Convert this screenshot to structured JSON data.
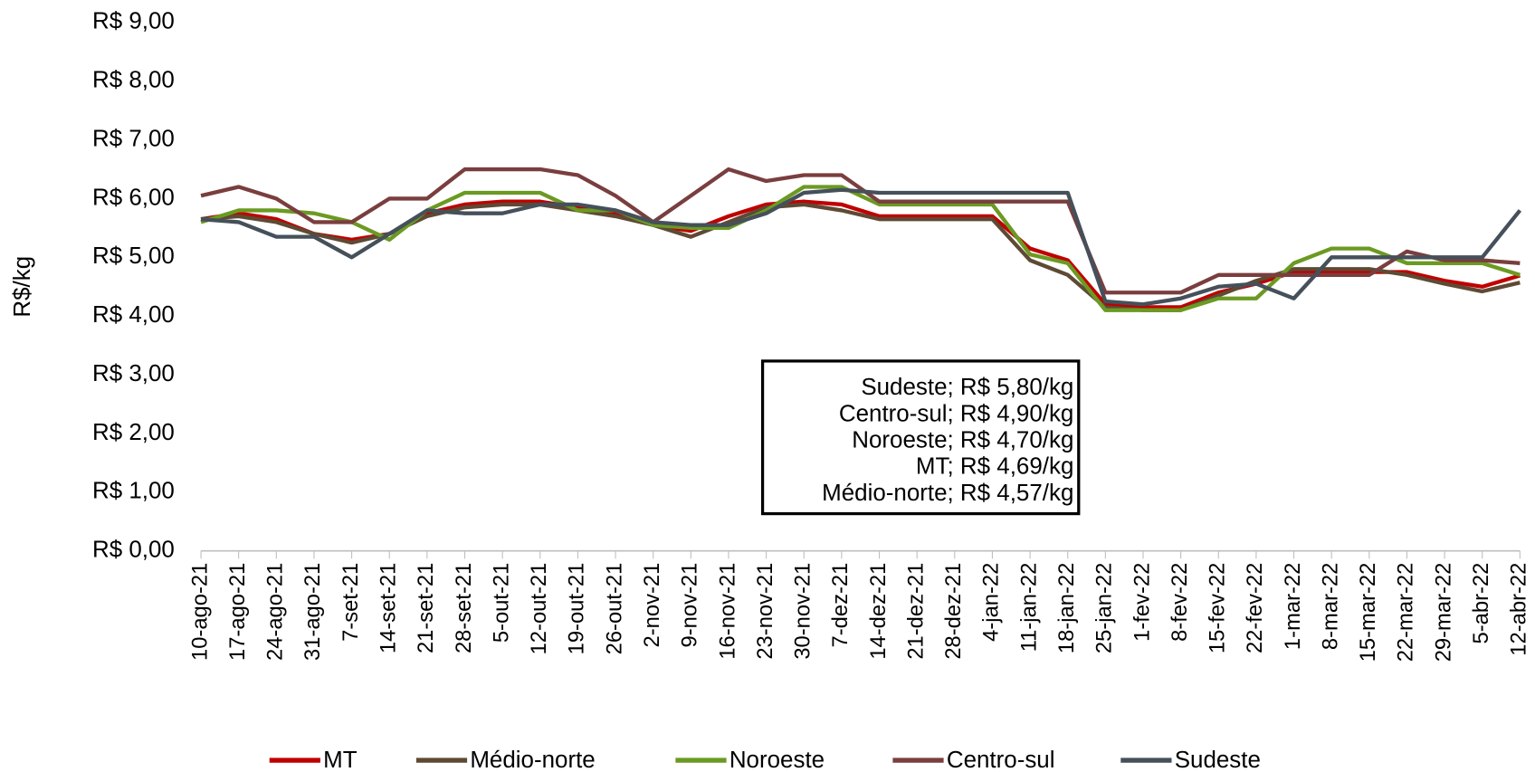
{
  "chart_data": {
    "type": "line",
    "y_label": "R$/kg",
    "categories": [
      "10-ago-21",
      "17-ago-21",
      "24-ago-21",
      "31-ago-21",
      "7-set-21",
      "14-set-21",
      "21-set-21",
      "28-set-21",
      "5-out-21",
      "12-out-21",
      "19-out-21",
      "26-out-21",
      "2-nov-21",
      "9-nov-21",
      "16-nov-21",
      "23-nov-21",
      "30-nov-21",
      "7-dez-21",
      "14-dez-21",
      "21-dez-21",
      "28-dez-21",
      "4-jan-22",
      "11-jan-22",
      "18-jan-22",
      "25-jan-22",
      "1-fev-22",
      "8-fev-22",
      "15-fev-22",
      "22-fev-22",
      "1-mar-22",
      "8-mar-22",
      "15-mar-22",
      "22-mar-22",
      "29-mar-22",
      "5-abr-22",
      "12-abr-22"
    ],
    "series": [
      {
        "name": "MT",
        "color": "#c00000",
        "values": [
          5.65,
          5.75,
          5.65,
          5.4,
          5.3,
          5.4,
          5.75,
          5.9,
          5.95,
          5.95,
          5.85,
          5.75,
          5.55,
          5.45,
          5.7,
          5.9,
          5.95,
          5.9,
          5.7,
          5.7,
          5.7,
          5.7,
          5.15,
          4.95,
          4.2,
          4.15,
          4.15,
          4.4,
          4.55,
          4.75,
          4.75,
          4.75,
          4.75,
          4.6,
          4.5,
          4.69
        ]
      },
      {
        "name": "Médio-norte",
        "color": "#5e4a34",
        "values": [
          5.65,
          5.7,
          5.6,
          5.4,
          5.25,
          5.4,
          5.7,
          5.85,
          5.9,
          5.9,
          5.8,
          5.7,
          5.55,
          5.35,
          5.6,
          5.85,
          5.9,
          5.8,
          5.65,
          5.65,
          5.65,
          5.65,
          4.95,
          4.7,
          4.15,
          4.1,
          4.1,
          4.35,
          4.6,
          4.8,
          4.8,
          4.8,
          4.7,
          4.55,
          4.42,
          4.57
        ]
      },
      {
        "name": "Noroeste",
        "color": "#6b9a22",
        "values": [
          5.6,
          5.8,
          5.8,
          5.75,
          5.6,
          5.3,
          5.8,
          6.1,
          6.1,
          6.1,
          5.8,
          5.8,
          5.55,
          5.5,
          5.5,
          5.8,
          6.2,
          6.2,
          5.9,
          5.9,
          5.9,
          5.9,
          5.05,
          4.9,
          4.1,
          4.1,
          4.1,
          4.3,
          4.3,
          4.9,
          5.15,
          5.15,
          4.9,
          4.9,
          4.9,
          4.7
        ]
      },
      {
        "name": "Centro-sul",
        "color": "#7a3e3e",
        "values": [
          6.05,
          6.2,
          6.0,
          5.6,
          5.6,
          6.0,
          6.0,
          6.5,
          6.5,
          6.5,
          6.4,
          6.05,
          5.6,
          6.05,
          6.5,
          6.3,
          6.4,
          6.4,
          5.95,
          5.95,
          5.95,
          5.95,
          5.95,
          5.95,
          4.4,
          4.4,
          4.4,
          4.7,
          4.7,
          4.7,
          4.7,
          4.7,
          5.1,
          4.95,
          4.95,
          4.9
        ]
      },
      {
        "name": "Sudeste",
        "color": "#45505a",
        "values": [
          5.65,
          5.6,
          5.35,
          5.35,
          5.0,
          5.4,
          5.8,
          5.75,
          5.75,
          5.9,
          5.9,
          5.8,
          5.6,
          5.55,
          5.55,
          5.75,
          6.1,
          6.15,
          6.1,
          6.1,
          6.1,
          6.1,
          6.1,
          6.1,
          4.25,
          4.2,
          4.3,
          4.5,
          4.55,
          4.3,
          5.0,
          5.0,
          5.0,
          5.0,
          5.0,
          5.8
        ]
      }
    ],
    "ylim": [
      0,
      9
    ],
    "yticks": [
      {
        "value": 0,
        "label": "R$ 0,00"
      },
      {
        "value": 1,
        "label": "R$ 1,00"
      },
      {
        "value": 2,
        "label": "R$ 2,00"
      },
      {
        "value": 3,
        "label": "R$ 3,00"
      },
      {
        "value": 4,
        "label": "R$ 4,00"
      },
      {
        "value": 5,
        "label": "R$ 5,00"
      },
      {
        "value": 6,
        "label": "R$ 6,00"
      },
      {
        "value": 7,
        "label": "R$ 7,00"
      },
      {
        "value": 8,
        "label": "R$ 8,00"
      },
      {
        "value": 9,
        "label": "R$ 9,00"
      }
    ],
    "grid": false,
    "legend": "bottom",
    "annotations": [
      "Sudeste; R$ 5,80/kg",
      "Centro-sul; R$ 4,90/kg",
      "Noroeste; R$ 4,70/kg",
      "MT; R$ 4,69/kg",
      "Médio-norte; R$ 4,57/kg"
    ]
  }
}
